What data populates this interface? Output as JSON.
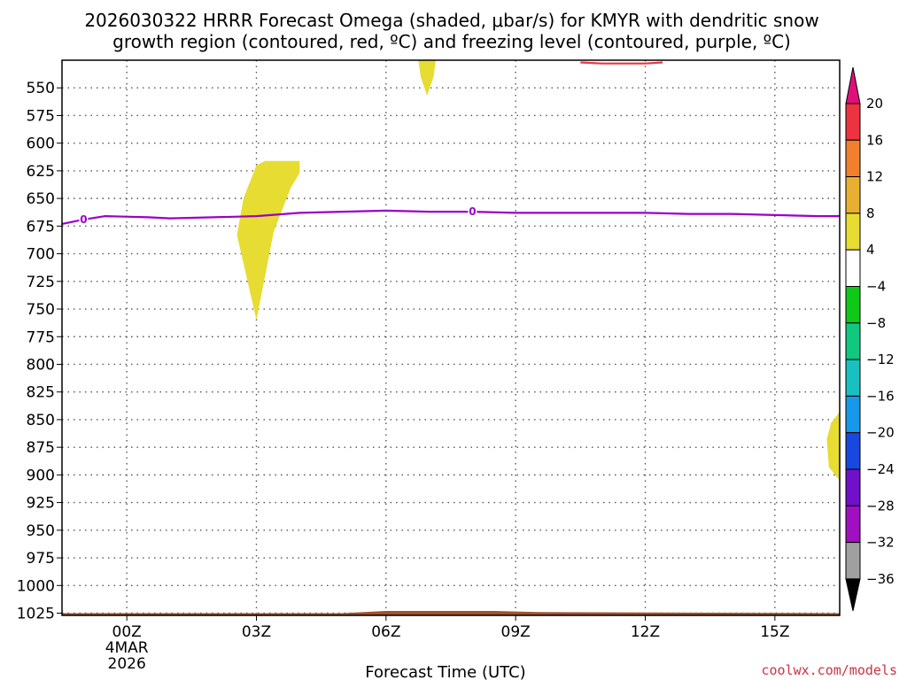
{
  "chart_data": {
    "type": "heatmap",
    "title_line1": "2026030322 HRRR Forecast Omega (shaded, μbar/s) for KMYR with dendritic snow",
    "title_line2": "growth region (contoured, red, ºC) and freezing level (contoured, purple, ºC)",
    "xlabel": "Forecast Time (UTC)",
    "credit": "coolwx.com/models",
    "x_range_hours": [
      -1.5,
      16.5
    ],
    "x_ticks": [
      {
        "hour": 0,
        "label": "00Z",
        "sub1": "4MAR",
        "sub2": "2026"
      },
      {
        "hour": 3,
        "label": "03Z"
      },
      {
        "hour": 6,
        "label": "06Z"
      },
      {
        "hour": 9,
        "label": "09Z"
      },
      {
        "hour": 12,
        "label": "12Z"
      },
      {
        "hour": 15,
        "label": "15Z"
      }
    ],
    "y_ticks": [
      550,
      575,
      600,
      625,
      650,
      675,
      700,
      725,
      750,
      775,
      800,
      825,
      850,
      875,
      900,
      925,
      950,
      975,
      1000,
      1025
    ],
    "y_range_hpa": [
      525,
      1027
    ],
    "grid": true,
    "colorbar": {
      "labels": [
        "20",
        "16",
        "12",
        "8",
        "4",
        "−4",
        "−8",
        "−12",
        "−16",
        "−20",
        "−24",
        "−28",
        "−32",
        "−36"
      ],
      "colors": [
        "#ee3340",
        "#f0802e",
        "#e8b030",
        "#e7dc32",
        "#ffffff",
        "#10c818",
        "#10c880",
        "#18c0c0",
        "#1898e8",
        "#1848e0",
        "#7010c8",
        "#a010c0",
        "#a0a0a0"
      ],
      "top_arrow_color": "#e0107a",
      "bottom_arrow_color": "#000000"
    },
    "series": [
      {
        "name": "freezing level",
        "contour_label": "0",
        "color": "#9900cc",
        "points": [
          [
            -1.5,
            673
          ],
          [
            -1.0,
            669
          ],
          [
            -0.5,
            666
          ],
          [
            0.5,
            667
          ],
          [
            1.0,
            668
          ],
          [
            2.0,
            667
          ],
          [
            3.0,
            666
          ],
          [
            4.0,
            663
          ],
          [
            5.0,
            662
          ],
          [
            6.0,
            661
          ],
          [
            7.0,
            662
          ],
          [
            8.0,
            662
          ],
          [
            9.0,
            663
          ],
          [
            10.0,
            663
          ],
          [
            11.0,
            663
          ],
          [
            12.0,
            663
          ],
          [
            13.0,
            664
          ],
          [
            14.0,
            664
          ],
          [
            15.0,
            665
          ],
          [
            16.0,
            666
          ],
          [
            16.5,
            666
          ]
        ],
        "label_positions_hours": [
          -1.0,
          8.0
        ]
      },
      {
        "name": "dendritic snow growth region",
        "color": "#ee3340",
        "points": [
          [
            10.5,
            527
          ],
          [
            11.0,
            528
          ],
          [
            11.5,
            528
          ],
          [
            12.0,
            528
          ],
          [
            12.4,
            527
          ]
        ]
      }
    ],
    "shaded_regions": [
      {
        "value_class": "4-8",
        "color": "#e7dc32",
        "polygon": [
          [
            2.8,
            640
          ],
          [
            3.0,
            620
          ],
          [
            3.2,
            616
          ],
          [
            4.0,
            616
          ],
          [
            4.0,
            627
          ],
          [
            3.8,
            640
          ],
          [
            3.4,
            680
          ],
          [
            3.0,
            760
          ],
          [
            2.55,
            683
          ],
          [
            2.7,
            650
          ]
        ]
      },
      {
        "value_class": "4-8",
        "color": "#e7dc32",
        "polygon": [
          [
            6.75,
            525
          ],
          [
            7.15,
            525
          ],
          [
            7.1,
            540
          ],
          [
            6.95,
            557
          ],
          [
            6.8,
            540
          ]
        ]
      },
      {
        "value_class": "4-8",
        "color": "#e7dc32",
        "polygon": [
          [
            16.5,
            843
          ],
          [
            16.5,
            905
          ],
          [
            16.25,
            893
          ],
          [
            16.2,
            868
          ],
          [
            16.3,
            853
          ]
        ]
      }
    ],
    "terrain": {
      "color": "#a0522d",
      "points": [
        [
          -1.5,
          1025
        ],
        [
          5.0,
          1025
        ],
        [
          6.0,
          1023
        ],
        [
          8.5,
          1023
        ],
        [
          9.5,
          1024
        ],
        [
          16.5,
          1025
        ]
      ]
    }
  }
}
